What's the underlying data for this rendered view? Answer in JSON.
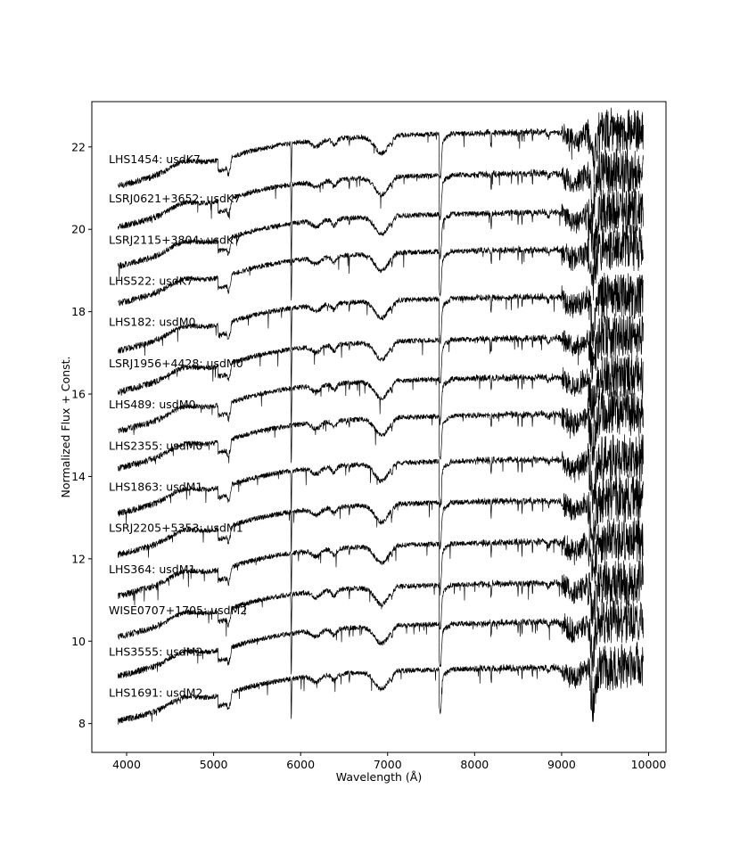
{
  "chart_data": {
    "type": "line",
    "title": "",
    "xlabel": "Wavelength (Å)",
    "ylabel": "Normalized Flux + Const.",
    "xlim": [
      3600,
      10200
    ],
    "ylim": [
      7.3,
      23.1
    ],
    "x_ticks": [
      4000,
      5000,
      6000,
      7000,
      8000,
      9000,
      10000
    ],
    "y_ticks": [
      8,
      10,
      12,
      14,
      16,
      18,
      20,
      22
    ],
    "x_range": [
      3900,
      9940
    ],
    "grid": false,
    "legend": "none",
    "series": [
      {
        "name": "LHS1454: usdK7",
        "offset": 20.9,
        "start_rel": 0.15,
        "label_y": 21.7
      },
      {
        "name": "LSRJ0621+3652: usdK7",
        "offset": 19.9,
        "start_rel": 0.15,
        "label_y": 20.75
      },
      {
        "name": "LSRJ2115+3804: usdK7",
        "offset": 18.9,
        "start_rel": 0.2,
        "label_y": 19.75
      },
      {
        "name": "LHS522: usdK7",
        "offset": 17.9,
        "start_rel": 0.3,
        "label_y": 18.75
      },
      {
        "name": "LHS182: usdM0",
        "offset": 16.9,
        "start_rel": 0.15,
        "label_y": 17.75
      },
      {
        "name": "LSRJ1956+4428: usdM0",
        "offset": 15.9,
        "start_rel": 0.15,
        "label_y": 16.75
      },
      {
        "name": "LHS489: usdM0",
        "offset": 14.9,
        "start_rel": 0.2,
        "label_y": 15.75
      },
      {
        "name": "LHS2355: usdM0",
        "offset": 13.9,
        "start_rel": 0.3,
        "label_y": 14.75
      },
      {
        "name": "LHS1863: usdM1",
        "offset": 12.95,
        "start_rel": 0.15,
        "label_y": 13.75
      },
      {
        "name": "LSRJ2205+5353: usdM1",
        "offset": 11.9,
        "start_rel": 0.2,
        "label_y": 12.75
      },
      {
        "name": "LHS364: usdM1",
        "offset": 10.95,
        "start_rel": 0.15,
        "label_y": 11.75
      },
      {
        "name": "WISE0707+1705: usdM2",
        "offset": 9.95,
        "start_rel": 0.15,
        "label_y": 10.75
      },
      {
        "name": "LHS3555: usdM2",
        "offset": 8.95,
        "start_rel": 0.2,
        "label_y": 9.75
      },
      {
        "name": "LHS1691: usdM2",
        "offset": 8.0,
        "start_rel": 0.05,
        "label_y": 8.75
      }
    ]
  }
}
